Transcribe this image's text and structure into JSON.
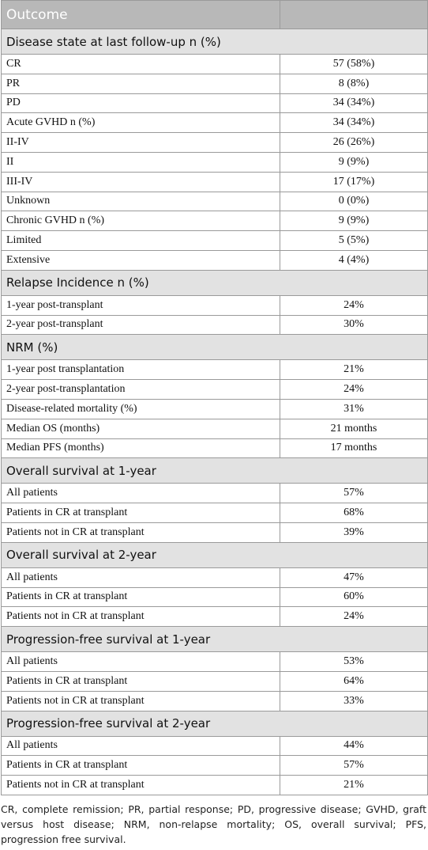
{
  "header": {
    "title": "Outcome"
  },
  "sections": [
    {
      "title": "Disease state at last follow-up n (%)",
      "rows": [
        [
          "CR",
          "57 (58%)"
        ],
        [
          "PR",
          "8 (8%)"
        ],
        [
          "PD",
          "34 (34%)"
        ],
        [
          "Acute GVHD n (%)",
          "34 (34%)"
        ],
        [
          "II-IV",
          "26 (26%)"
        ],
        [
          "II",
          "9 (9%)"
        ],
        [
          "III-IV",
          "17 (17%)"
        ],
        [
          "Unknown",
          "0 (0%)"
        ],
        [
          "Chronic GVHD n (%)",
          "9 (9%)"
        ],
        [
          "Limited",
          "5 (5%)"
        ],
        [
          "Extensive",
          "4 (4%)"
        ]
      ]
    },
    {
      "title": "Relapse Incidence n (%)",
      "rows": [
        [
          "1-year post-transplant",
          "24%"
        ],
        [
          "2-year post-transplant",
          "30%"
        ]
      ]
    },
    {
      "title": "NRM (%)",
      "rows": [
        [
          "1-year post transplantation",
          "21%"
        ],
        [
          "2-year post-transplantation",
          "24%"
        ],
        [
          "Disease-related mortality (%)",
          "31%"
        ],
        [
          "Median OS (months)",
          "21 months"
        ],
        [
          "Median PFS (months)",
          "17 months"
        ]
      ]
    },
    {
      "title": "Overall survival at 1-year",
      "rows": [
        [
          "All patients",
          "57%"
        ],
        [
          "Patients in CR at transplant",
          "68%"
        ],
        [
          "Patients not in CR at transplant",
          "39%"
        ]
      ]
    },
    {
      "title": "Overall survival at 2-year",
      "rows": [
        [
          "All patients",
          "47%"
        ],
        [
          "Patients in CR at transplant",
          "60%"
        ],
        [
          "Patients not in CR at transplant",
          "24%"
        ]
      ]
    },
    {
      "title": "Progression-free survival at 1-year",
      "rows": [
        [
          "All patients",
          "53%"
        ],
        [
          "Patients in CR at transplant",
          "64%"
        ],
        [
          "Patients not in CR at transplant",
          "33%"
        ]
      ]
    },
    {
      "title": "Progression-free survival at 2-year",
      "rows": [
        [
          "All patients",
          "44%"
        ],
        [
          "Patients in CR at transplant",
          "57%"
        ],
        [
          "Patients not in CR at transplant",
          "21%"
        ]
      ]
    }
  ],
  "footnote": "CR, complete remission; PR, partial response; PD, progressive disease; GVHD, graft versus host disease; NRM, non-relapse mortality; OS, overall survival; PFS, progression free survival."
}
